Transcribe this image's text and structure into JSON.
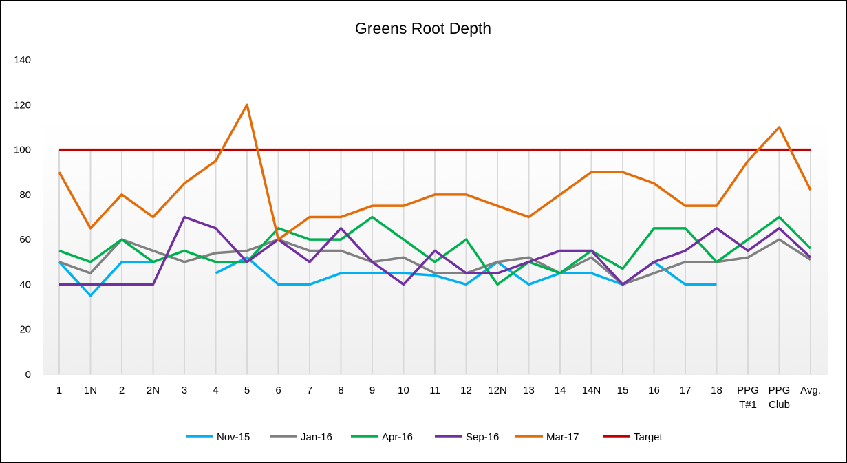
{
  "chart_data": {
    "type": "line",
    "title": "Greens Root Depth",
    "xlabel": "",
    "ylabel": "",
    "ylim": [
      0,
      140
    ],
    "yticks": [
      0,
      20,
      40,
      60,
      80,
      100,
      120,
      140
    ],
    "grid": "vertical",
    "legend": "bottom",
    "categories": [
      "1",
      "1N",
      "2",
      "2N",
      "3",
      "4",
      "5",
      "6",
      "7",
      "8",
      "9",
      "10",
      "11",
      "12",
      "12N",
      "13",
      "14",
      "14N",
      "15",
      "16",
      "17",
      "18",
      "PPG T#1",
      "PPG Club",
      "Avg."
    ],
    "series": [
      {
        "name": "Nov-15",
        "color": "#00b0f0",
        "values": [
          50,
          35,
          50,
          50,
          null,
          45,
          52,
          40,
          40,
          45,
          45,
          45,
          44,
          40,
          50,
          40,
          45,
          45,
          40,
          50,
          40,
          40,
          null,
          null,
          null
        ]
      },
      {
        "name": "Jan-16",
        "color": "#808080",
        "values": [
          50,
          45,
          60,
          55,
          50,
          54,
          55,
          60,
          55,
          55,
          50,
          52,
          45,
          45,
          50,
          52,
          45,
          52,
          40,
          45,
          50,
          50,
          52,
          60,
          51
        ]
      },
      {
        "name": "Apr-16",
        "color": "#00b050",
        "values": [
          55,
          50,
          60,
          50,
          55,
          50,
          50,
          65,
          60,
          60,
          70,
          60,
          50,
          60,
          40,
          50,
          45,
          55,
          47,
          65,
          65,
          50,
          60,
          70,
          56
        ]
      },
      {
        "name": "Sep-16",
        "color": "#7030a0",
        "values": [
          40,
          40,
          40,
          40,
          70,
          65,
          50,
          60,
          50,
          65,
          50,
          40,
          55,
          45,
          45,
          50,
          55,
          55,
          40,
          50,
          55,
          65,
          55,
          65,
          52
        ]
      },
      {
        "name": "Mar-17",
        "color": "#e36c09",
        "values": [
          90,
          65,
          80,
          70,
          85,
          95,
          120,
          60,
          70,
          70,
          75,
          75,
          80,
          80,
          75,
          70,
          80,
          90,
          90,
          85,
          75,
          75,
          95,
          110,
          82
        ]
      },
      {
        "name": "Target",
        "color": "#c00000",
        "values": [
          100,
          100,
          100,
          100,
          100,
          100,
          100,
          100,
          100,
          100,
          100,
          100,
          100,
          100,
          100,
          100,
          100,
          100,
          100,
          100,
          100,
          100,
          100,
          100,
          100
        ]
      }
    ]
  }
}
